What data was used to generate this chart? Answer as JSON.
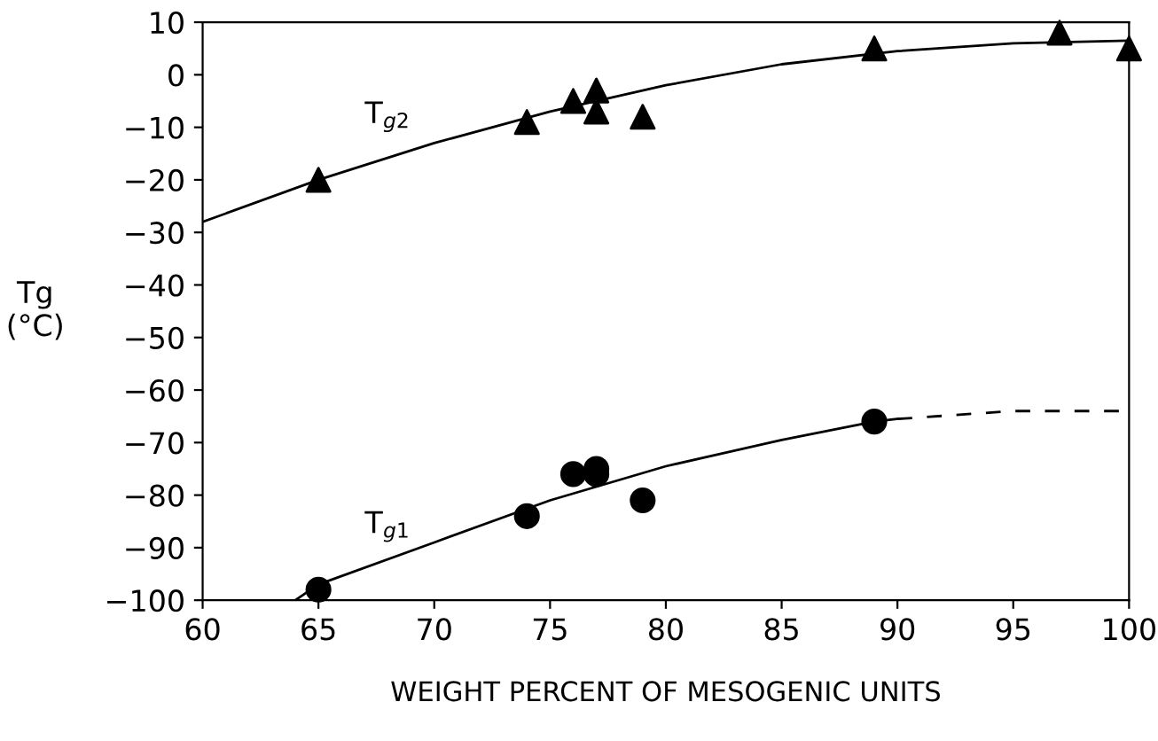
{
  "chart_data": {
    "type": "scatter",
    "xlabel": "WEIGHT PERCENT OF MESOGENIC UNITS",
    "ylabel": "Tg\n(°C)",
    "xlim": [
      60,
      100
    ],
    "ylim": [
      -100,
      10
    ],
    "xticks": [
      60,
      65,
      70,
      75,
      80,
      85,
      90,
      95,
      100
    ],
    "yticks": [
      -100,
      -90,
      -80,
      -70,
      -60,
      -50,
      -40,
      -30,
      -20,
      -10,
      0,
      10
    ],
    "grid": false,
    "series": [
      {
        "name": "T$_{g2}$",
        "marker": "triangle",
        "color": "#000000",
        "x": [
          65,
          74,
          76,
          77,
          77,
          79,
          89,
          97,
          100
        ],
        "values": [
          -20,
          -9,
          -5,
          -3,
          -7,
          -8,
          5,
          8,
          5
        ]
      },
      {
        "type": "line",
        "line_style": "solid",
        "color": "#000000",
        "x": [
          60,
          65,
          70,
          75,
          80,
          85,
          90,
          95,
          100
        ],
        "values": [
          -28,
          -20,
          -13,
          -7,
          -2,
          2,
          4.5,
          6,
          6.5
        ]
      },
      {
        "name": "T$_{g1}$",
        "marker": "circle",
        "color": "#000000",
        "x": [
          65,
          74,
          76,
          77,
          77,
          79,
          89
        ],
        "values": [
          -98,
          -84,
          -76,
          -75,
          -76,
          -81,
          -66
        ]
      },
      {
        "type": "line",
        "line_style": "solid",
        "color": "#000000",
        "x": [
          64,
          65,
          70,
          75,
          80,
          85,
          89,
          90
        ],
        "values": [
          -100,
          -97,
          -89,
          -81,
          -74.5,
          -69.5,
          -66,
          -65.5
        ]
      },
      {
        "type": "line",
        "line_style": "dashed",
        "color": "#000000",
        "x": [
          90,
          95,
          100
        ],
        "values": [
          -65.5,
          -64,
          -64
        ]
      }
    ]
  }
}
